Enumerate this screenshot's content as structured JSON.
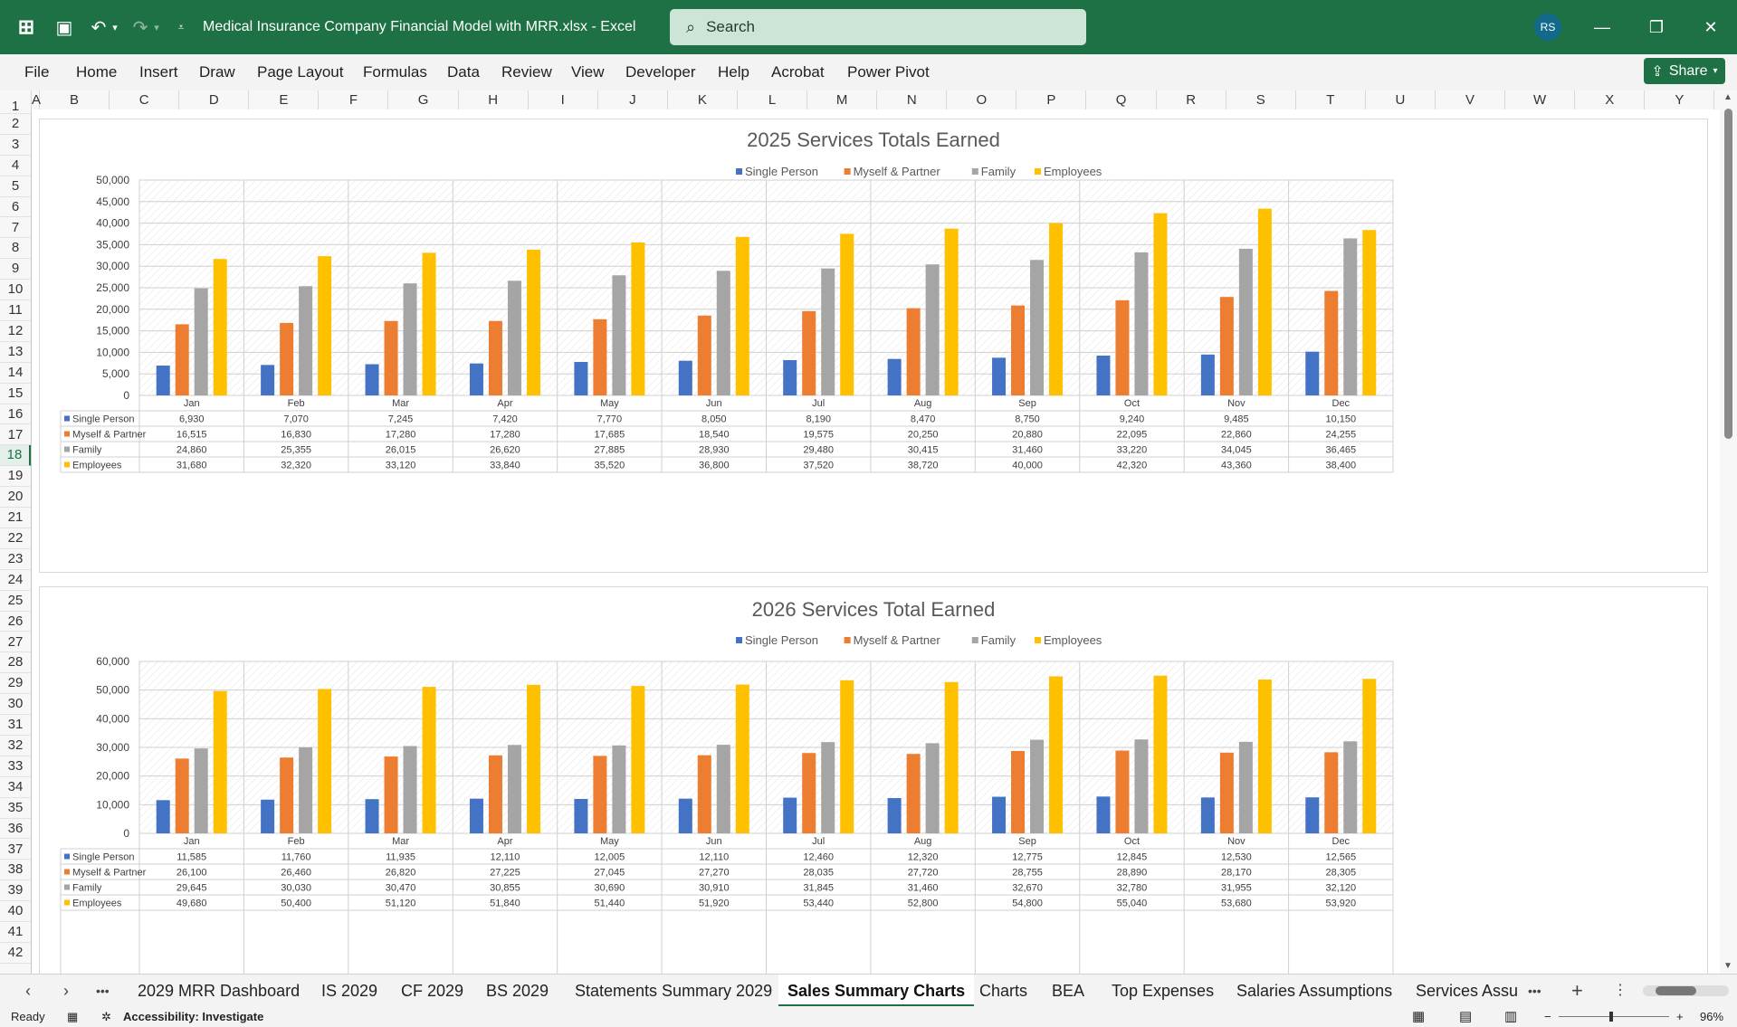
{
  "window": {
    "title": "Medical Insurance Company Financial Model with MRR.xlsx  -  Excel",
    "search_placeholder": "Search",
    "user_initials": "RS"
  },
  "ribbon": {
    "tabs": [
      "File",
      "Home",
      "Insert",
      "Draw",
      "Page Layout",
      "Formulas",
      "Data",
      "Review",
      "View",
      "Developer",
      "Help",
      "Acrobat",
      "Power Pivot"
    ],
    "share_label": "Share"
  },
  "grid": {
    "columns": [
      "A",
      "B",
      "C",
      "D",
      "E",
      "F",
      "G",
      "H",
      "I",
      "J",
      "K",
      "L",
      "M",
      "N",
      "O",
      "P",
      "Q",
      "R",
      "S",
      "T",
      "U",
      "V",
      "W",
      "X",
      "Y"
    ],
    "rows": [
      "1",
      "2",
      "3",
      "4",
      "5",
      "6",
      "7",
      "8",
      "9",
      "10",
      "11",
      "12",
      "13",
      "14",
      "15",
      "16",
      "17",
      "18",
      "19",
      "20",
      "21",
      "22",
      "23",
      "24",
      "25",
      "26",
      "27",
      "28",
      "29",
      "30",
      "31",
      "32",
      "33",
      "34",
      "35",
      "36",
      "37",
      "38",
      "39",
      "40",
      "41",
      "42"
    ],
    "selected_row": "18"
  },
  "chart_data": [
    {
      "type": "bar",
      "title": "2025 Services Totals Earned",
      "categories": [
        "Jan",
        "Feb",
        "Mar",
        "Apr",
        "May",
        "Jun",
        "Jul",
        "Aug",
        "Sep",
        "Oct",
        "Nov",
        "Dec"
      ],
      "ylim": [
        0,
        50000
      ],
      "ytick_labels": [
        "50,000",
        "45,000",
        "40,000",
        "35,000",
        "30,000",
        "25,000",
        "20,000",
        "15,000",
        "10,000",
        "5,000",
        "0"
      ],
      "legend_position": "top",
      "grid": true,
      "series": [
        {
          "name": "Single Person",
          "color": "#4472c4",
          "values": [
            6930,
            7070,
            7245,
            7420,
            7770,
            8050,
            8190,
            8470,
            8750,
            9240,
            9485,
            10150
          ],
          "labels": [
            "6,930",
            "7,070",
            "7,245",
            "7,420",
            "7,770",
            "8,050",
            "8,190",
            "8,470",
            "8,750",
            "9,240",
            "9,485",
            "10,150"
          ]
        },
        {
          "name": "Myself & Partner",
          "color": "#ed7d31",
          "values": [
            16515,
            16830,
            17280,
            17280,
            17685,
            18540,
            19575,
            20250,
            20880,
            22095,
            22860,
            24255
          ],
          "labels": [
            "16,515",
            "16,830",
            "17,280",
            "17,280",
            "17,685",
            "18,540",
            "19,575",
            "20,250",
            "20,880",
            "22,095",
            "22,860",
            "24,255"
          ]
        },
        {
          "name": "Family",
          "color": "#a5a5a5",
          "values": [
            24860,
            25355,
            26015,
            26620,
            27885,
            28930,
            29480,
            30415,
            31460,
            33220,
            34045,
            36465
          ],
          "labels": [
            "24,860",
            "25,355",
            "26,015",
            "26,620",
            "27,885",
            "28,930",
            "29,480",
            "30,415",
            "31,460",
            "33,220",
            "34,045",
            "36,465"
          ]
        },
        {
          "name": "Employees",
          "color": "#ffc000",
          "values": [
            31680,
            32320,
            33120,
            33840,
            35520,
            36800,
            37520,
            38720,
            40000,
            42320,
            43360,
            38400
          ],
          "labels": [
            "31,680",
            "32,320",
            "33,120",
            "33,840",
            "35,520",
            "36,800",
            "37,520",
            "38,720",
            "40,000",
            "42,320",
            "43,360",
            "38,400"
          ]
        }
      ]
    },
    {
      "type": "bar",
      "title": "2026 Services Total Earned",
      "categories": [
        "Jan",
        "Feb",
        "Mar",
        "Apr",
        "May",
        "Jun",
        "Jul",
        "Aug",
        "Sep",
        "Oct",
        "Nov",
        "Dec"
      ],
      "ylim": [
        0,
        60000
      ],
      "ytick_labels": [
        "60,000",
        "50,000",
        "40,000",
        "30,000",
        "20,000",
        "10,000",
        "0"
      ],
      "legend_position": "top",
      "grid": true,
      "series": [
        {
          "name": "Single Person",
          "color": "#4472c4",
          "values": [
            11585,
            11760,
            11935,
            12110,
            12005,
            12110,
            12460,
            12320,
            12775,
            12845,
            12530,
            12565
          ],
          "labels": [
            "11,585",
            "11,760",
            "11,935",
            "12,110",
            "12,005",
            "12,110",
            "12,460",
            "12,320",
            "12,775",
            "12,845",
            "12,530",
            "12,565"
          ]
        },
        {
          "name": "Myself & Partner",
          "color": "#ed7d31",
          "values": [
            26100,
            26460,
            26820,
            27225,
            27045,
            27270,
            28035,
            27720,
            28755,
            28890,
            28170,
            28305
          ],
          "labels": [
            "26,100",
            "26,460",
            "26,820",
            "27,225",
            "27,045",
            "27,270",
            "28,035",
            "27,720",
            "28,755",
            "28,890",
            "28,170",
            "28,305"
          ]
        },
        {
          "name": "Family",
          "color": "#a5a5a5",
          "values": [
            29645,
            30030,
            30470,
            30855,
            30690,
            30910,
            31845,
            31460,
            32670,
            32780,
            31955,
            32120
          ],
          "labels": [
            "29,645",
            "30,030",
            "30,470",
            "30,855",
            "30,690",
            "30,910",
            "31,845",
            "31,460",
            "32,670",
            "32,780",
            "31,955",
            "32,120"
          ]
        },
        {
          "name": "Employees",
          "color": "#ffc000",
          "values": [
            49680,
            50400,
            51120,
            51840,
            51440,
            51920,
            53440,
            52800,
            54800,
            55040,
            53680,
            53920
          ],
          "labels": [
            "49,680",
            "50,400",
            "51,120",
            "51,840",
            "51,440",
            "51,920",
            "53,440",
            "52,800",
            "54,800",
            "55,040",
            "53,680",
            "53,920"
          ]
        }
      ]
    }
  ],
  "sheet_tabs": [
    "2029 MRR Dashboard",
    "IS 2029",
    "CF 2029",
    "BS 2029",
    "Statements Summary 2029",
    "Sales Summary Charts",
    "Charts",
    "BEA",
    "Top Expenses",
    "Salaries Assumptions",
    "Services Assump"
  ],
  "active_sheet": "Sales Summary Charts",
  "status": {
    "ready": "Ready",
    "accessibility": "Accessibility: Investigate",
    "zoom": "96%"
  },
  "colors": {
    "accent": "#1e7145"
  }
}
